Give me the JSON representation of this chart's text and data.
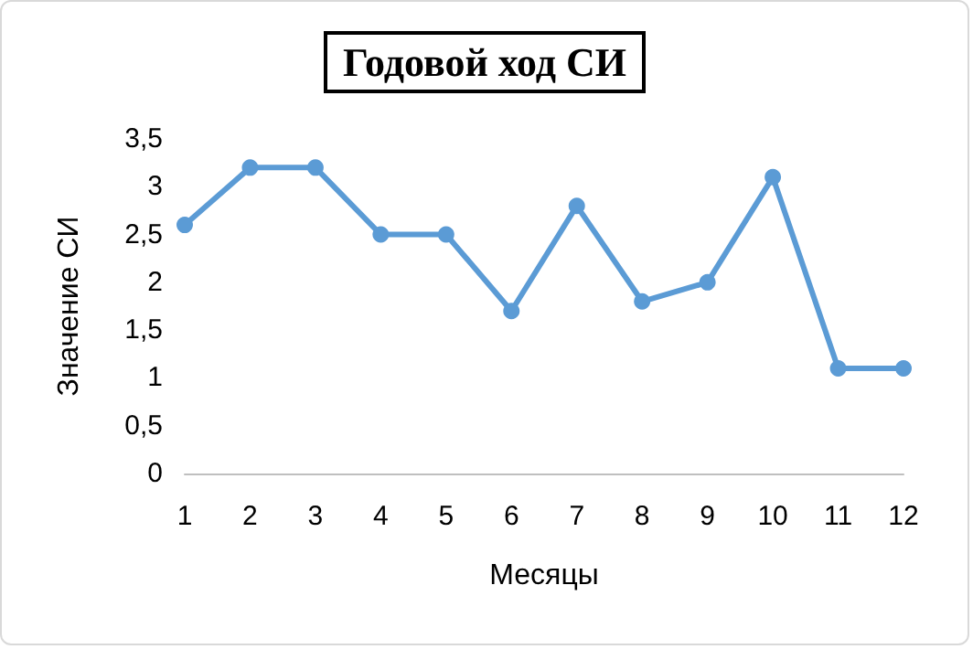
{
  "chart_data": {
    "type": "line",
    "title": "Годовой ход СИ",
    "xlabel": "Месяцы",
    "ylabel": "Значение СИ",
    "x": [
      1,
      2,
      3,
      4,
      5,
      6,
      7,
      8,
      9,
      10,
      11,
      12
    ],
    "series": [
      {
        "color": "#5b9bd5",
        "values": [
          2.6,
          3.2,
          3.2,
          2.5,
          2.5,
          1.7,
          2.8,
          1.8,
          2.0,
          3.1,
          1.1,
          1.1
        ]
      }
    ],
    "xlim": [
      1,
      12
    ],
    "xticks": [
      1,
      2,
      3,
      4,
      5,
      6,
      7,
      8,
      9,
      10,
      11,
      12
    ],
    "ylim": [
      0,
      3.5
    ],
    "yticks": [
      0,
      {
        "value": 0.5,
        "label": "0,5"
      },
      1,
      {
        "value": 1.5,
        "label": "1,5"
      },
      2,
      {
        "value": 2.5,
        "label": "2,5"
      },
      3,
      {
        "value": 3.5,
        "label": "3,5"
      }
    ],
    "grid": false,
    "marker": "circle",
    "line_style": "solid"
  }
}
